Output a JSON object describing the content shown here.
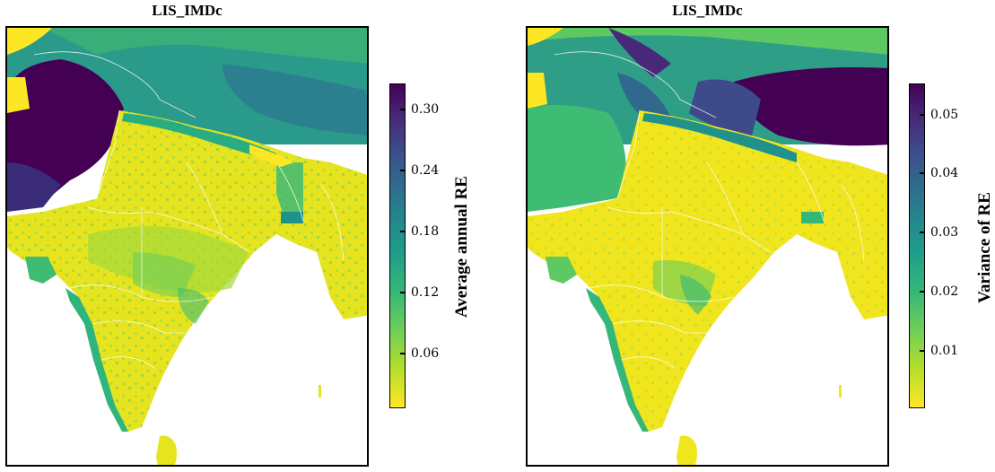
{
  "panels": [
    {
      "title": "LIS_IMDc",
      "colorbar": {
        "label": "Average annual RE",
        "ticks": [
          "0.30",
          "0.24",
          "0.18",
          "0.12",
          "0.06"
        ],
        "range": [
          0.0,
          0.32
        ],
        "colormap": "viridis_r"
      }
    },
    {
      "title": "LIS_IMDc",
      "colorbar": {
        "label": "Variance of RE",
        "ticks": [
          "0.05",
          "0.04",
          "0.03",
          "0.02",
          "0.01"
        ],
        "range": [
          0.0,
          0.055
        ],
        "colormap": "viridis_r"
      }
    }
  ],
  "colors": {
    "low": "#fde725",
    "mid": "#21918c",
    "high": "#440154",
    "boundary": "#ffffff"
  }
}
